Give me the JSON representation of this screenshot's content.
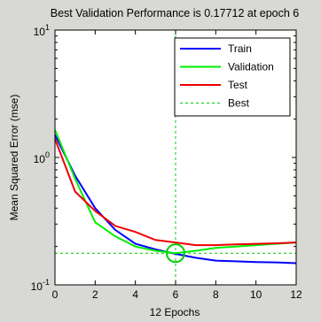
{
  "chart_data": {
    "type": "line",
    "title": "Best Validation Performance is 0.17712 at epoch 6",
    "xlabel": "12 Epochs",
    "ylabel": "Mean Squared Error  (mse)",
    "xlim": [
      0,
      12
    ],
    "ylim": [
      0.1,
      10
    ],
    "yscale": "log",
    "x_ticks": [
      0,
      2,
      4,
      6,
      8,
      10,
      12
    ],
    "x_tick_labels": [
      "0",
      "2",
      "4",
      "6",
      "8",
      "10",
      "12"
    ],
    "y_ticks": [
      0.1,
      1,
      10
    ],
    "y_tick_labels": [
      {
        "base": "10",
        "exp": "-1"
      },
      {
        "base": "10",
        "exp": "0"
      },
      {
        "base": "10",
        "exp": "1"
      }
    ],
    "series": [
      {
        "name": "Train",
        "color": "#0000ff",
        "x": [
          0,
          1,
          2,
          3,
          4,
          5,
          6,
          7,
          8,
          9,
          10,
          11,
          12
        ],
        "y": [
          1.5,
          0.72,
          0.4,
          0.27,
          0.21,
          0.19,
          0.175,
          0.163,
          0.155,
          0.153,
          0.151,
          0.15,
          0.148
        ]
      },
      {
        "name": "Validation",
        "color": "#00ee00",
        "x": [
          0,
          1,
          2,
          3,
          4,
          5,
          6,
          7,
          8,
          9,
          10,
          11,
          12
        ],
        "y": [
          1.65,
          0.68,
          0.31,
          0.24,
          0.2,
          0.185,
          0.177,
          0.185,
          0.195,
          0.2,
          0.205,
          0.21,
          0.215
        ]
      },
      {
        "name": "Test",
        "color": "#ee0000",
        "x": [
          0,
          1,
          2,
          3,
          4,
          5,
          6,
          7,
          8,
          9,
          10,
          11,
          12
        ],
        "y": [
          1.4,
          0.54,
          0.38,
          0.29,
          0.26,
          0.225,
          0.215,
          0.205,
          0.205,
          0.208,
          0.21,
          0.212,
          0.215
        ]
      }
    ],
    "best": {
      "name": "Best",
      "color": "#00cc00",
      "epoch": 6,
      "value": 0.17712
    },
    "legend": {
      "position": "top-right"
    },
    "grid": false
  }
}
